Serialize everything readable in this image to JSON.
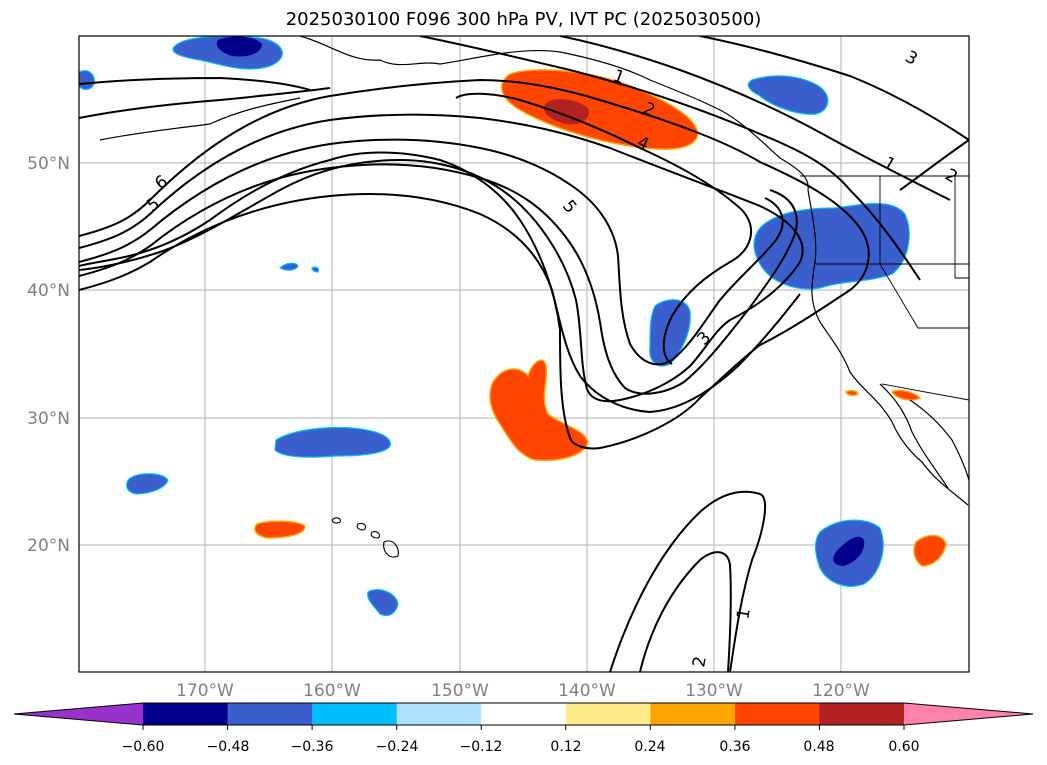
{
  "title": "2025030100 F096 300 hPa PV, IVT PC (2025030500)",
  "lat_labels": [
    "50°N",
    "40°N",
    "30°N",
    "20°N"
  ],
  "lon_labels": [
    "170°W",
    "160°W",
    "150°W",
    "140°W",
    "130°W",
    "120°W"
  ],
  "contour_labels": [
    "1",
    "2",
    "3",
    "4",
    "5",
    "6"
  ],
  "colorbar": {
    "tick_labels": [
      "−0.60",
      "−0.48",
      "−0.36",
      "−0.24",
      "−0.12",
      "0.12",
      "0.24",
      "0.36",
      "0.48",
      "0.60"
    ],
    "colors": [
      "#9932cc",
      "#00008b",
      "#3a5fcd",
      "#00bfff",
      "#b0e2ff",
      "#ffffff",
      "#ffec8b",
      "#ffa500",
      "#ff4500",
      "#b22222",
      "#ff82ab"
    ]
  }
}
